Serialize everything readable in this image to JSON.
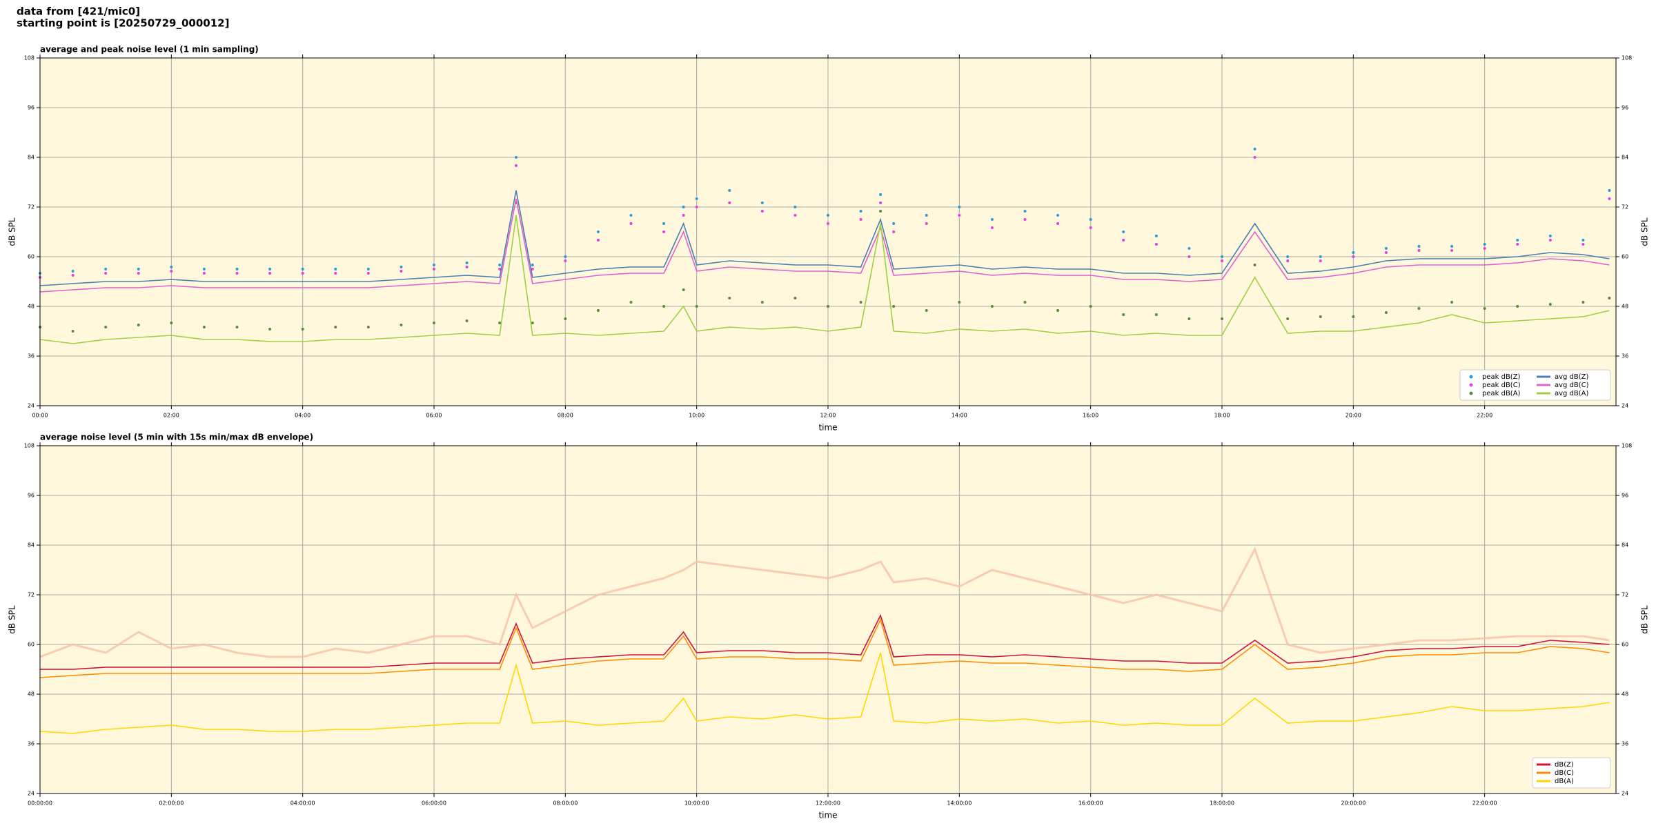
{
  "header": [
    "data from [421/mic0]",
    "starting point is [20250729_000012]"
  ],
  "chart_data": [
    {
      "type": "line",
      "title": "average and peak noise level (1 min sampling)",
      "x_label": "time",
      "y_label": "dB SPL",
      "background": "#fff8dc",
      "grid": true,
      "legend": "lower right",
      "x": [
        0,
        0.5,
        1,
        1.5,
        2,
        2.5,
        3,
        3.5,
        4,
        4.5,
        5,
        5.5,
        6,
        6.5,
        7,
        7.25,
        7.5,
        8,
        8.5,
        9,
        9.5,
        9.8,
        10,
        10.5,
        11,
        11.5,
        12,
        12.5,
        12.8,
        13,
        13.5,
        14,
        14.5,
        15,
        15.5,
        16,
        16.5,
        17,
        17.5,
        18,
        18.5,
        19,
        19.5,
        20,
        20.5,
        21,
        21.5,
        22,
        22.5,
        23,
        23.5,
        23.9
      ],
      "xlim": [
        0,
        24
      ],
      "xticks": [
        {
          "value": 0,
          "label": "00:00"
        },
        {
          "value": 2,
          "label": "02:00"
        },
        {
          "value": 4,
          "label": "04:00"
        },
        {
          "value": 6,
          "label": "06:00"
        },
        {
          "value": 8,
          "label": "08:00"
        },
        {
          "value": 10,
          "label": "10:00"
        },
        {
          "value": 12,
          "label": "12:00"
        },
        {
          "value": 14,
          "label": "14:00"
        },
        {
          "value": 16,
          "label": "16:00"
        },
        {
          "value": 18,
          "label": "18:00"
        },
        {
          "value": 20,
          "label": "20:00"
        },
        {
          "value": 22,
          "label": "22:00"
        }
      ],
      "ylim": [
        24,
        108
      ],
      "yticks": [
        24,
        36,
        48,
        60,
        72,
        84,
        96,
        108
      ],
      "series": [
        {
          "name": "peak dB(Z)",
          "color": "#2a9ad8",
          "style": "dots",
          "values": [
            56,
            56.5,
            57,
            57,
            57.5,
            57,
            57,
            57,
            57,
            57,
            57,
            57.5,
            58,
            58.5,
            58,
            84,
            58,
            60,
            66,
            70,
            68,
            72,
            74,
            76,
            73,
            72,
            70,
            71,
            75,
            68,
            70,
            72,
            69,
            71,
            70,
            69,
            66,
            65,
            62,
            60,
            86,
            60,
            60,
            61,
            62,
            62.5,
            62.5,
            63,
            64,
            65,
            64,
            76
          ]
        },
        {
          "name": "peak dB(C)",
          "color": "#e040e0",
          "style": "dots",
          "values": [
            55,
            55.5,
            56,
            56,
            56.5,
            56,
            56,
            56,
            56,
            56,
            56,
            56.5,
            57,
            57.5,
            57,
            82,
            57,
            59,
            64,
            68,
            66,
            70,
            72,
            73,
            71,
            70,
            68,
            69,
            73,
            66,
            68,
            70,
            67,
            69,
            68,
            67,
            64,
            63,
            60,
            59,
            84,
            59,
            59,
            60,
            61,
            61.5,
            61.5,
            62,
            63,
            64,
            63,
            74
          ]
        },
        {
          "name": "peak dB(A)",
          "color": "#5a8a3a",
          "style": "dots",
          "values": [
            43,
            42,
            43,
            43.5,
            44,
            43,
            43,
            42.5,
            42.5,
            43,
            43,
            43.5,
            44,
            44.5,
            44,
            73,
            44,
            45,
            47,
            49,
            48,
            52,
            48,
            50,
            49,
            50,
            48,
            49,
            71,
            48,
            47,
            49,
            48,
            49,
            47,
            48,
            46,
            46,
            45,
            45,
            58,
            45,
            45.5,
            45.5,
            46.5,
            47.5,
            49,
            47.5,
            48,
            48.5,
            49,
            50
          ]
        },
        {
          "name": "avg dB(Z)",
          "color": "#4a7fb0",
          "style": "line",
          "values": [
            53,
            53.5,
            54,
            54,
            54.5,
            54,
            54,
            54,
            54,
            54,
            54,
            54.5,
            55,
            55.5,
            55,
            76,
            55,
            56,
            57,
            57.5,
            57.5,
            68,
            58,
            59,
            58.5,
            58,
            58,
            57.5,
            69,
            57,
            57.5,
            58,
            57,
            57.5,
            57,
            57,
            56,
            56,
            55.5,
            56,
            68,
            56,
            56.5,
            57.5,
            59,
            59.5,
            59.5,
            59.5,
            60,
            61,
            60.5,
            59.5
          ]
        },
        {
          "name": "avg dB(C)",
          "color": "#e060d0",
          "style": "line",
          "values": [
            51.5,
            52,
            52.5,
            52.5,
            53,
            52.5,
            52.5,
            52.5,
            52.5,
            52.5,
            52.5,
            53,
            53.5,
            54,
            53.5,
            74,
            53.5,
            54.5,
            55.5,
            56,
            56,
            66,
            56.5,
            57.5,
            57,
            56.5,
            56.5,
            56,
            67,
            55.5,
            56,
            56.5,
            55.5,
            56,
            55.5,
            55.5,
            54.5,
            54.5,
            54,
            54.5,
            66,
            54.5,
            55,
            56,
            57.5,
            58,
            58,
            58,
            58.5,
            59.5,
            59,
            58
          ]
        },
        {
          "name": "avg dB(A)",
          "color": "#a0d040",
          "style": "line",
          "values": [
            40,
            39,
            40,
            40.5,
            41,
            40,
            40,
            39.5,
            39.5,
            40,
            40,
            40.5,
            41,
            41.5,
            41,
            70,
            41,
            41.5,
            41,
            41.5,
            42,
            48,
            42,
            43,
            42.5,
            43,
            42,
            43,
            68,
            42,
            41.5,
            42.5,
            42,
            42.5,
            41.5,
            42,
            41,
            41.5,
            41,
            41,
            55,
            41.5,
            42,
            42,
            43,
            44,
            46,
            44,
            44.5,
            45,
            45.5,
            47
          ]
        }
      ]
    },
    {
      "type": "line",
      "title": "average noise level (5 min with 15s min/max dB envelope)",
      "x_label": "time",
      "y_label": "dB SPL",
      "background": "#fff8dc",
      "grid": true,
      "legend": "lower right",
      "x": [
        0,
        0.5,
        1,
        1.5,
        2,
        2.5,
        3,
        3.5,
        4,
        4.5,
        5,
        5.5,
        6,
        6.5,
        7,
        7.25,
        7.5,
        8,
        8.5,
        9,
        9.5,
        9.8,
        10,
        10.5,
        11,
        11.5,
        12,
        12.5,
        12.8,
        13,
        13.5,
        14,
        14.5,
        15,
        15.5,
        16,
        16.5,
        17,
        17.5,
        18,
        18.5,
        19,
        19.5,
        20,
        20.5,
        21,
        21.5,
        22,
        22.5,
        23,
        23.5,
        23.9
      ],
      "xlim": [
        0,
        24
      ],
      "xticks": [
        {
          "value": 0,
          "label": "00:00:00"
        },
        {
          "value": 2,
          "label": "02:00:00"
        },
        {
          "value": 4,
          "label": "04:00:00"
        },
        {
          "value": 6,
          "label": "06:00:00"
        },
        {
          "value": 8,
          "label": "08:00:00"
        },
        {
          "value": 10,
          "label": "10:00:00"
        },
        {
          "value": 12,
          "label": "12:00:00"
        },
        {
          "value": 14,
          "label": "14:00:00"
        },
        {
          "value": 16,
          "label": "16:00:00"
        },
        {
          "value": 18,
          "label": "18:00:00"
        },
        {
          "value": 20,
          "label": "20:00:00"
        },
        {
          "value": 22,
          "label": "22:00:00"
        }
      ],
      "ylim": [
        24,
        108
      ],
      "yticks": [
        24,
        36,
        48,
        60,
        72,
        84,
        96,
        108
      ],
      "envelope": {
        "color": "#f5c0a8",
        "values": [
          57,
          60,
          58,
          63,
          59,
          60,
          58,
          57,
          57,
          59,
          58,
          60,
          62,
          62,
          60,
          72,
          64,
          68,
          72,
          74,
          76,
          78,
          80,
          79,
          78,
          77,
          76,
          78,
          80,
          75,
          76,
          74,
          78,
          76,
          74,
          72,
          70,
          72,
          70,
          68,
          83,
          60,
          58,
          59,
          60,
          61,
          61,
          61.5,
          62,
          62,
          62,
          61
        ]
      },
      "series": [
        {
          "name": "dB(Z)",
          "color": "#d0103a",
          "style": "line",
          "values": [
            54,
            54,
            54.5,
            54.5,
            54.5,
            54.5,
            54.5,
            54.5,
            54.5,
            54.5,
            54.5,
            55,
            55.5,
            55.5,
            55.5,
            65,
            55.5,
            56.5,
            57,
            57.5,
            57.5,
            63,
            58,
            58.5,
            58.5,
            58,
            58,
            57.5,
            67,
            57,
            57.5,
            57.5,
            57,
            57.5,
            57,
            56.5,
            56,
            56,
            55.5,
            55.5,
            61,
            55.5,
            56,
            57,
            58.5,
            59,
            59,
            59.5,
            59.5,
            61,
            60.5,
            60
          ]
        },
        {
          "name": "dB(C)",
          "color": "#ff8c00",
          "style": "line",
          "values": [
            52,
            52.5,
            53,
            53,
            53,
            53,
            53,
            53,
            53,
            53,
            53,
            53.5,
            54,
            54,
            54,
            64,
            54,
            55,
            56,
            56.5,
            56.5,
            62,
            56.5,
            57,
            57,
            56.5,
            56.5,
            56,
            66,
            55,
            55.5,
            56,
            55.5,
            55.5,
            55,
            54.5,
            54,
            54,
            53.5,
            54,
            60,
            54,
            54.5,
            55.5,
            57,
            57.5,
            57.5,
            58,
            58,
            59.5,
            59,
            58
          ]
        },
        {
          "name": "dB(A)",
          "color": "#ffd700",
          "style": "line",
          "values": [
            39,
            38.5,
            39.5,
            40,
            40.5,
            39.5,
            39.5,
            39,
            39,
            39.5,
            39.5,
            40,
            40.5,
            41,
            41,
            55,
            41,
            41.5,
            40.5,
            41,
            41.5,
            47,
            41.5,
            42.5,
            42,
            43,
            42,
            42.5,
            58,
            41.5,
            41,
            42,
            41.5,
            42,
            41,
            41.5,
            40.5,
            41,
            40.5,
            40.5,
            47,
            41,
            41.5,
            41.5,
            42.5,
            43.5,
            45,
            44,
            44,
            44.5,
            45,
            46
          ]
        }
      ]
    }
  ]
}
